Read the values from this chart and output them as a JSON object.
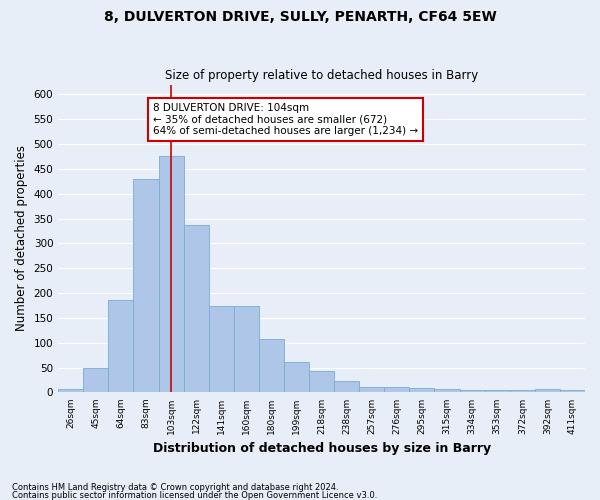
{
  "title1": "8, DULVERTON DRIVE, SULLY, PENARTH, CF64 5EW",
  "title2": "Size of property relative to detached houses in Barry",
  "xlabel": "Distribution of detached houses by size in Barry",
  "ylabel": "Number of detached properties",
  "categories": [
    "26sqm",
    "45sqm",
    "64sqm",
    "83sqm",
    "103sqm",
    "122sqm",
    "141sqm",
    "160sqm",
    "180sqm",
    "199sqm",
    "218sqm",
    "238sqm",
    "257sqm",
    "276sqm",
    "295sqm",
    "315sqm",
    "334sqm",
    "353sqm",
    "372sqm",
    "392sqm",
    "411sqm"
  ],
  "values": [
    6,
    50,
    187,
    430,
    477,
    338,
    174,
    174,
    107,
    61,
    44,
    24,
    11,
    11,
    8,
    7,
    5,
    4,
    4,
    6,
    4
  ],
  "bar_color": "#aec6e8",
  "bar_edge_color": "#7aacd4",
  "vline_x_index": 4,
  "vline_color": "#cc0000",
  "annotation_line1": "8 DULVERTON DRIVE: 104sqm",
  "annotation_line2": "← 35% of detached houses are smaller (672)",
  "annotation_line3": "64% of semi-detached houses are larger (1,234) →",
  "annotation_box_color": "#ffffff",
  "annotation_box_edge_color": "#cc0000",
  "ylim": [
    0,
    620
  ],
  "yticks": [
    0,
    50,
    100,
    150,
    200,
    250,
    300,
    350,
    400,
    450,
    500,
    550,
    600
  ],
  "background_color": "#e8eef7",
  "grid_color": "#ffffff",
  "footnote1": "Contains HM Land Registry data © Crown copyright and database right 2024.",
  "footnote2": "Contains public sector information licensed under the Open Government Licence v3.0."
}
